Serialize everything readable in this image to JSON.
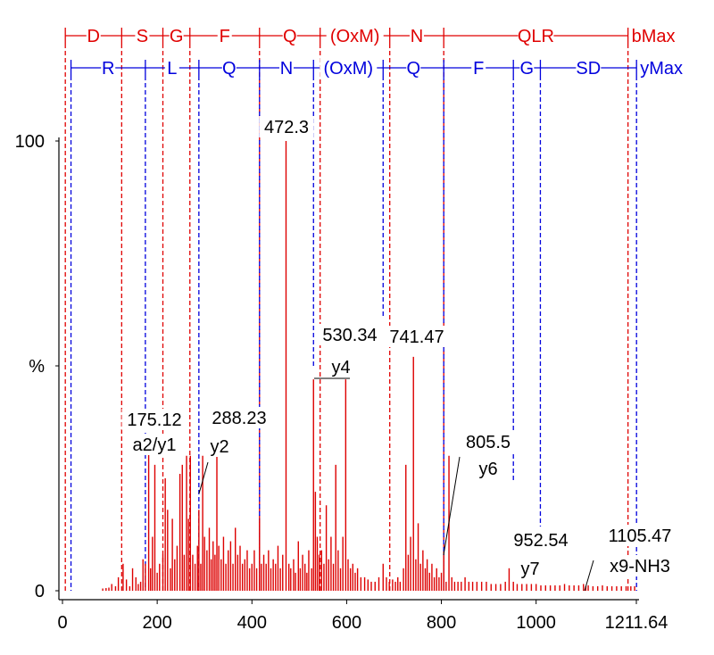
{
  "colors": {
    "b_ion": "#e00000",
    "y_ion": "#0000dd",
    "peaks": "#dd0000",
    "axis": "#000000"
  },
  "chart_data": {
    "type": "bar",
    "xlim": [
      0,
      1211.64
    ],
    "ylim": [
      0,
      100
    ],
    "x_ticks": [
      "0",
      "200",
      "400",
      "600",
      "800",
      "1000",
      "1211.64"
    ],
    "y_ticks": [
      "100",
      "%",
      "0"
    ],
    "b_ladder": {
      "end_label": "bMax",
      "residues": [
        {
          "label": "D",
          "start": 6,
          "end": 125
        },
        {
          "label": "S",
          "start": 125,
          "end": 212
        },
        {
          "label": "G",
          "start": 212,
          "end": 269
        },
        {
          "label": "F",
          "start": 269,
          "end": 416
        },
        {
          "label": "Q",
          "start": 416,
          "end": 544
        },
        {
          "label": "(OxM)",
          "start": 544,
          "end": 691
        },
        {
          "label": "N",
          "start": 691,
          "end": 805
        },
        {
          "label": "QLR",
          "start": 805,
          "end": 1194
        }
      ]
    },
    "y_ladder": {
      "end_label": "yMax",
      "residues": [
        {
          "label": "R",
          "start": 18,
          "end": 175
        },
        {
          "label": "L",
          "start": 175,
          "end": 288
        },
        {
          "label": "Q",
          "start": 288,
          "end": 416
        },
        {
          "label": "N",
          "start": 416,
          "end": 530
        },
        {
          "label": "(OxM)",
          "start": 530,
          "end": 677
        },
        {
          "label": "Q",
          "start": 677,
          "end": 805
        },
        {
          "label": "F",
          "start": 805,
          "end": 952
        },
        {
          "label": "G",
          "start": 952,
          "end": 1009
        },
        {
          "label": "SD",
          "start": 1009,
          "end": 1212
        }
      ]
    },
    "annotations": [
      {
        "mz": "175.12",
        "ion": "a2/y1",
        "x": 182,
        "y": 33
      },
      {
        "mz": "288.23",
        "ion": "y2",
        "x": 295,
        "y": 30
      },
      {
        "mz": "472.3",
        "ion": "",
        "x": 472,
        "y": 100
      },
      {
        "mz": "530.34",
        "ion": "y4",
        "x": 530,
        "y": 47
      },
      {
        "mz": "741.47",
        "ion": "",
        "x": 741,
        "y": 52
      },
      {
        "mz": "805.5",
        "ion": "y6",
        "x": 805,
        "y": 8
      },
      {
        "mz": "952.54",
        "ion": "y7",
        "x": 952,
        "y": 2
      },
      {
        "mz": "1105.47",
        "ion": "x9-NH3",
        "x": 1105,
        "y": 1
      }
    ],
    "peaks": [
      [
        85,
        0.5
      ],
      [
        92,
        0.6
      ],
      [
        98,
        0.7
      ],
      [
        104,
        1.5
      ],
      [
        112,
        1
      ],
      [
        118,
        3
      ],
      [
        128,
        6
      ],
      [
        135,
        2.5
      ],
      [
        142,
        1
      ],
      [
        148,
        5
      ],
      [
        155,
        3
      ],
      [
        160,
        1.5
      ],
      [
        165,
        2
      ],
      [
        170,
        7
      ],
      [
        175,
        6
      ],
      [
        182,
        33
      ],
      [
        186,
        5
      ],
      [
        190,
        12
      ],
      [
        195,
        28
      ],
      [
        200,
        4
      ],
      [
        205,
        6
      ],
      [
        212,
        8
      ],
      [
        217,
        25
      ],
      [
        222,
        18
      ],
      [
        228,
        5
      ],
      [
        232,
        16
      ],
      [
        237,
        7
      ],
      [
        242,
        10
      ],
      [
        248,
        26
      ],
      [
        253,
        28
      ],
      [
        257,
        8
      ],
      [
        262,
        30
      ],
      [
        266,
        16
      ],
      [
        270,
        30
      ],
      [
        275,
        8
      ],
      [
        280,
        6
      ],
      [
        285,
        10
      ],
      [
        288,
        18
      ],
      [
        292,
        6
      ],
      [
        296,
        30
      ],
      [
        300,
        12
      ],
      [
        305,
        9
      ],
      [
        310,
        14
      ],
      [
        314,
        7
      ],
      [
        318,
        11
      ],
      [
        322,
        8
      ],
      [
        326,
        32
      ],
      [
        330,
        10
      ],
      [
        335,
        7
      ],
      [
        340,
        12
      ],
      [
        345,
        6
      ],
      [
        350,
        9
      ],
      [
        355,
        11
      ],
      [
        360,
        6
      ],
      [
        365,
        14
      ],
      [
        370,
        8
      ],
      [
        375,
        10
      ],
      [
        380,
        6
      ],
      [
        385,
        7
      ],
      [
        390,
        9
      ],
      [
        395,
        5
      ],
      [
        400,
        6
      ],
      [
        405,
        9
      ],
      [
        410,
        5
      ],
      [
        416,
        16
      ],
      [
        420,
        6
      ],
      [
        425,
        8
      ],
      [
        430,
        6
      ],
      [
        435,
        9
      ],
      [
        440,
        5
      ],
      [
        445,
        7
      ],
      [
        450,
        6
      ],
      [
        455,
        10
      ],
      [
        460,
        5
      ],
      [
        465,
        8
      ],
      [
        472,
        100
      ],
      [
        478,
        6
      ],
      [
        482,
        5
      ],
      [
        488,
        7
      ],
      [
        492,
        4
      ],
      [
        498,
        11
      ],
      [
        502,
        5
      ],
      [
        507,
        8
      ],
      [
        512,
        6
      ],
      [
        516,
        4
      ],
      [
        520,
        9
      ],
      [
        526,
        5
      ],
      [
        530,
        47
      ],
      [
        534,
        22
      ],
      [
        538,
        12
      ],
      [
        542,
        8
      ],
      [
        547,
        9
      ],
      [
        552,
        6
      ],
      [
        557,
        19
      ],
      [
        562,
        7
      ],
      [
        567,
        12
      ],
      [
        572,
        6
      ],
      [
        577,
        28
      ],
      [
        582,
        9
      ],
      [
        587,
        5
      ],
      [
        592,
        12
      ],
      [
        598,
        47
      ],
      [
        603,
        7
      ],
      [
        608,
        5
      ],
      [
        613,
        6
      ],
      [
        618,
        4
      ],
      [
        623,
        5
      ],
      [
        630,
        3
      ],
      [
        638,
        3
      ],
      [
        645,
        2.5
      ],
      [
        652,
        2
      ],
      [
        660,
        2
      ],
      [
        668,
        3
      ],
      [
        677,
        6
      ],
      [
        684,
        3
      ],
      [
        690,
        2
      ],
      [
        697,
        2.5
      ],
      [
        703,
        2
      ],
      [
        708,
        3
      ],
      [
        713,
        2
      ],
      [
        720,
        5
      ],
      [
        725,
        28
      ],
      [
        730,
        8
      ],
      [
        735,
        12
      ],
      [
        741,
        52
      ],
      [
        746,
        7
      ],
      [
        751,
        15
      ],
      [
        756,
        6
      ],
      [
        761,
        9
      ],
      [
        766,
        5
      ],
      [
        770,
        7
      ],
      [
        775,
        4
      ],
      [
        780,
        6
      ],
      [
        785,
        3
      ],
      [
        790,
        5
      ],
      [
        795,
        3
      ],
      [
        800,
        4
      ],
      [
        805,
        8
      ],
      [
        810,
        2
      ],
      [
        816,
        30
      ],
      [
        822,
        3
      ],
      [
        828,
        2
      ],
      [
        835,
        2
      ],
      [
        842,
        2
      ],
      [
        850,
        3
      ],
      [
        858,
        2
      ],
      [
        866,
        2
      ],
      [
        875,
        2
      ],
      [
        885,
        2
      ],
      [
        895,
        2
      ],
      [
        905,
        1.5
      ],
      [
        915,
        1.5
      ],
      [
        925,
        1.5
      ],
      [
        935,
        2
      ],
      [
        943,
        5
      ],
      [
        952,
        2
      ],
      [
        960,
        1.5
      ],
      [
        970,
        1.5
      ],
      [
        980,
        1.5
      ],
      [
        990,
        1.5
      ],
      [
        1000,
        1.5
      ],
      [
        1010,
        1.2
      ],
      [
        1020,
        1.2
      ],
      [
        1030,
        1.2
      ],
      [
        1040,
        1.2
      ],
      [
        1050,
        1.2
      ],
      [
        1060,
        1.5
      ],
      [
        1070,
        1.2
      ],
      [
        1080,
        1.2
      ],
      [
        1090,
        1.2
      ],
      [
        1100,
        1.5
      ],
      [
        1105,
        1
      ],
      [
        1110,
        1.2
      ],
      [
        1120,
        1
      ],
      [
        1130,
        1
      ],
      [
        1140,
        1.2
      ],
      [
        1150,
        1
      ],
      [
        1160,
        1
      ],
      [
        1170,
        1
      ],
      [
        1180,
        1
      ],
      [
        1190,
        1
      ],
      [
        1200,
        1
      ],
      [
        1208,
        1
      ]
    ]
  }
}
